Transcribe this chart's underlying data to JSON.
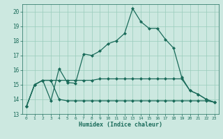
{
  "title": "",
  "xlabel": "Humidex (Indice chaleur)",
  "bg_color": "#cce8e0",
  "grid_color": "#99ccbb",
  "line_color": "#1a6b5a",
  "xlim": [
    -0.5,
    23.5
  ],
  "ylim": [
    13,
    20.5
  ],
  "xticks": [
    0,
    1,
    2,
    3,
    4,
    5,
    6,
    7,
    8,
    9,
    10,
    11,
    12,
    13,
    14,
    15,
    16,
    17,
    18,
    19,
    20,
    21,
    22,
    23
  ],
  "yticks": [
    13,
    14,
    15,
    16,
    17,
    18,
    19,
    20
  ],
  "line1_x": [
    0,
    1,
    2,
    3,
    4,
    5,
    6,
    7,
    8,
    9,
    10,
    11,
    12,
    13,
    14,
    15,
    16,
    17,
    18,
    19,
    20,
    21,
    22,
    23
  ],
  "line1_y": [
    13.5,
    15.0,
    15.3,
    13.9,
    16.1,
    15.15,
    15.1,
    17.1,
    17.0,
    17.3,
    17.8,
    18.0,
    18.5,
    20.2,
    19.3,
    18.85,
    18.85,
    18.1,
    17.5,
    15.5,
    14.6,
    14.35,
    14.0,
    13.8
  ],
  "line2_x": [
    0,
    1,
    2,
    3,
    4,
    5,
    6,
    7,
    8,
    9,
    10,
    11,
    12,
    13,
    14,
    15,
    16,
    17,
    18,
    19,
    20,
    21,
    22,
    23
  ],
  "line2_y": [
    13.5,
    15.0,
    15.3,
    15.3,
    14.0,
    13.9,
    13.9,
    13.9,
    13.9,
    13.9,
    13.9,
    13.9,
    13.9,
    13.9,
    13.9,
    13.9,
    13.9,
    13.9,
    13.9,
    13.9,
    13.9,
    13.9,
    13.9,
    13.8
  ],
  "line3_x": [
    0,
    1,
    2,
    3,
    4,
    5,
    6,
    7,
    8,
    9,
    10,
    11,
    12,
    13,
    14,
    15,
    16,
    17,
    18,
    19,
    20,
    21,
    22,
    23
  ],
  "line3_y": [
    13.5,
    15.0,
    15.3,
    15.3,
    15.3,
    15.3,
    15.3,
    15.3,
    15.3,
    15.4,
    15.4,
    15.4,
    15.4,
    15.4,
    15.4,
    15.4,
    15.4,
    15.4,
    15.4,
    15.4,
    14.6,
    14.35,
    14.0,
    13.8
  ],
  "marker": "D",
  "markersize": 2.0,
  "linewidth": 0.9
}
